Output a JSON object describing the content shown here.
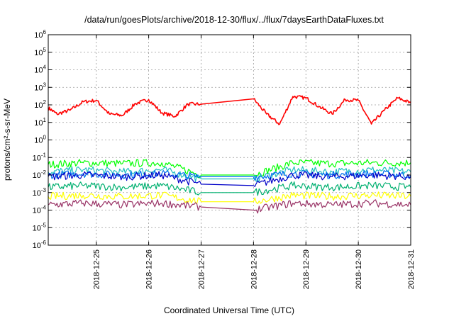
{
  "chart_data": {
    "type": "line",
    "title": "/data/run/goesPlots/archive/2018-12-30/flux/../flux/7daysEarthDataFluxes.txt",
    "xlabel": "Coordinated Universal Time (UTC)",
    "ylabel": "protons/cm²-s-sr-MeV",
    "ylim": [
      1e-06,
      1000000.0
    ],
    "y_scale": "log",
    "yticks": [
      {
        "value": 1e-06,
        "base": "10",
        "exp": "-6"
      },
      {
        "value": 1e-05,
        "base": "10",
        "exp": "-5"
      },
      {
        "value": 0.0001,
        "base": "10",
        "exp": "-4"
      },
      {
        "value": 0.001,
        "base": "10",
        "exp": "-3"
      },
      {
        "value": 0.01,
        "base": "10",
        "exp": "-2"
      },
      {
        "value": 0.1,
        "base": "10",
        "exp": "-1"
      },
      {
        "value": 1,
        "base": "10",
        "exp": "0"
      },
      {
        "value": 10,
        "base": "10",
        "exp": "1"
      },
      {
        "value": 100,
        "base": "10",
        "exp": "2"
      },
      {
        "value": 1000,
        "base": "10",
        "exp": "3"
      },
      {
        "value": 10000,
        "base": "10",
        "exp": "4"
      },
      {
        "value": 100000,
        "base": "10",
        "exp": "5"
      },
      {
        "value": 1000000,
        "base": "10",
        "exp": "6"
      }
    ],
    "xlim": [
      "2018-12-24T02:00",
      "2018-12-31T00:00"
    ],
    "xticks": [
      "2018-12-25",
      "2018-12-26",
      "2018-12-27",
      "2018-12-28",
      "2018-12-29",
      "2018-12-30",
      "2018-12-31"
    ],
    "grid": true,
    "legend": "none",
    "data_gap": [
      "2018-12-27T00:00",
      "2018-12-28T00:00"
    ],
    "series": [
      {
        "color": "#ff0000",
        "x": [
          "2018-12-24T02:00",
          "2018-12-24T06:00",
          "2018-12-24T12:00",
          "2018-12-24T18:00",
          "2018-12-25T00:00",
          "2018-12-25T06:00",
          "2018-12-25T12:00",
          "2018-12-25T18:00",
          "2018-12-26T00:00",
          "2018-12-26T06:00",
          "2018-12-26T12:00",
          "2018-12-26T18:00",
          "2018-12-27T00:00",
          "2018-12-28T00:00",
          "2018-12-28T06:00",
          "2018-12-28T12:00",
          "2018-12-28T18:00",
          "2018-12-29T00:00",
          "2018-12-29T06:00",
          "2018-12-29T12:00",
          "2018-12-29T18:00",
          "2018-12-30T00:00",
          "2018-12-30T06:00",
          "2018-12-30T12:00",
          "2018-12-30T18:00",
          "2018-12-31T00:00"
        ],
        "y": [
          70,
          30,
          50,
          150,
          180,
          30,
          25,
          120,
          200,
          35,
          22,
          110,
          110,
          220,
          30,
          8,
          300,
          250,
          80,
          30,
          200,
          180,
          8,
          50,
          250,
          130
        ]
      },
      {
        "color": "#00ff00",
        "x": [
          "2018-12-24T02:00",
          "2018-12-24T18:00",
          "2018-12-25T12:00",
          "2018-12-26T06:00",
          "2018-12-27T00:00",
          "2018-12-28T00:00",
          "2018-12-28T18:00",
          "2018-12-29T12:00",
          "2018-12-30T06:00",
          "2018-12-31T00:00"
        ],
        "y": [
          0.04,
          0.05,
          0.045,
          0.05,
          0.01,
          0.01,
          0.05,
          0.045,
          0.05,
          0.05
        ]
      },
      {
        "color": "#20c0c0",
        "x": [
          "2018-12-24T02:00",
          "2018-12-24T18:00",
          "2018-12-25T12:00",
          "2018-12-26T06:00",
          "2018-12-27T00:00",
          "2018-12-28T00:00",
          "2018-12-28T18:00",
          "2018-12-29T12:00",
          "2018-12-30T06:00",
          "2018-12-31T00:00"
        ],
        "y": [
          0.015,
          0.02,
          0.015,
          0.02,
          0.006,
          0.006,
          0.02,
          0.015,
          0.02,
          0.015
        ]
      },
      {
        "color": "#0070f0",
        "x": [
          "2018-12-24T02:00",
          "2018-12-24T18:00",
          "2018-12-25T12:00",
          "2018-12-26T06:00",
          "2018-12-27T00:00",
          "2018-12-28T00:00",
          "2018-12-28T18:00",
          "2018-12-29T12:00",
          "2018-12-30T06:00",
          "2018-12-31T00:00"
        ],
        "y": [
          0.01,
          0.012,
          0.01,
          0.012,
          0.008,
          0.008,
          0.012,
          0.01,
          0.012,
          0.01
        ]
      },
      {
        "color": "#0000c8",
        "x": [
          "2018-12-24T02:00",
          "2018-12-24T18:00",
          "2018-12-25T12:00",
          "2018-12-26T06:00",
          "2018-12-27T00:00",
          "2018-12-28T00:00",
          "2018-12-28T18:00",
          "2018-12-29T12:00",
          "2018-12-30T06:00",
          "2018-12-31T00:00"
        ],
        "y": [
          0.008,
          0.01,
          0.008,
          0.01,
          0.003,
          0.0025,
          0.01,
          0.008,
          0.01,
          0.008
        ]
      },
      {
        "color": "#00b070",
        "x": [
          "2018-12-24T02:00",
          "2018-12-24T18:00",
          "2018-12-25T12:00",
          "2018-12-26T06:00",
          "2018-12-27T00:00",
          "2018-12-28T00:00",
          "2018-12-28T18:00",
          "2018-12-29T12:00",
          "2018-12-30T06:00",
          "2018-12-31T00:00"
        ],
        "y": [
          0.002,
          0.0025,
          0.002,
          0.0025,
          0.001,
          0.001,
          0.0025,
          0.002,
          0.0025,
          0.002
        ]
      },
      {
        "color": "#ffff00",
        "x": [
          "2018-12-24T02:00",
          "2018-12-24T18:00",
          "2018-12-25T12:00",
          "2018-12-26T06:00",
          "2018-12-27T00:00",
          "2018-12-28T00:00",
          "2018-12-28T18:00",
          "2018-12-29T12:00",
          "2018-12-30T06:00",
          "2018-12-31T00:00"
        ],
        "y": [
          0.0006,
          0.0007,
          0.0006,
          0.0007,
          0.0003,
          0.0003,
          0.0007,
          0.0006,
          0.0007,
          0.0006
        ]
      },
      {
        "color": "#993366",
        "x": [
          "2018-12-24T02:00",
          "2018-12-24T18:00",
          "2018-12-25T12:00",
          "2018-12-26T06:00",
          "2018-12-27T00:00",
          "2018-12-28T00:00",
          "2018-12-28T18:00",
          "2018-12-29T12:00",
          "2018-12-30T06:00",
          "2018-12-31T00:00"
        ],
        "y": [
          0.0002,
          0.00025,
          0.0002,
          0.00025,
          0.00015,
          0.0001,
          0.00025,
          0.0002,
          0.00025,
          0.0002
        ]
      }
    ]
  }
}
